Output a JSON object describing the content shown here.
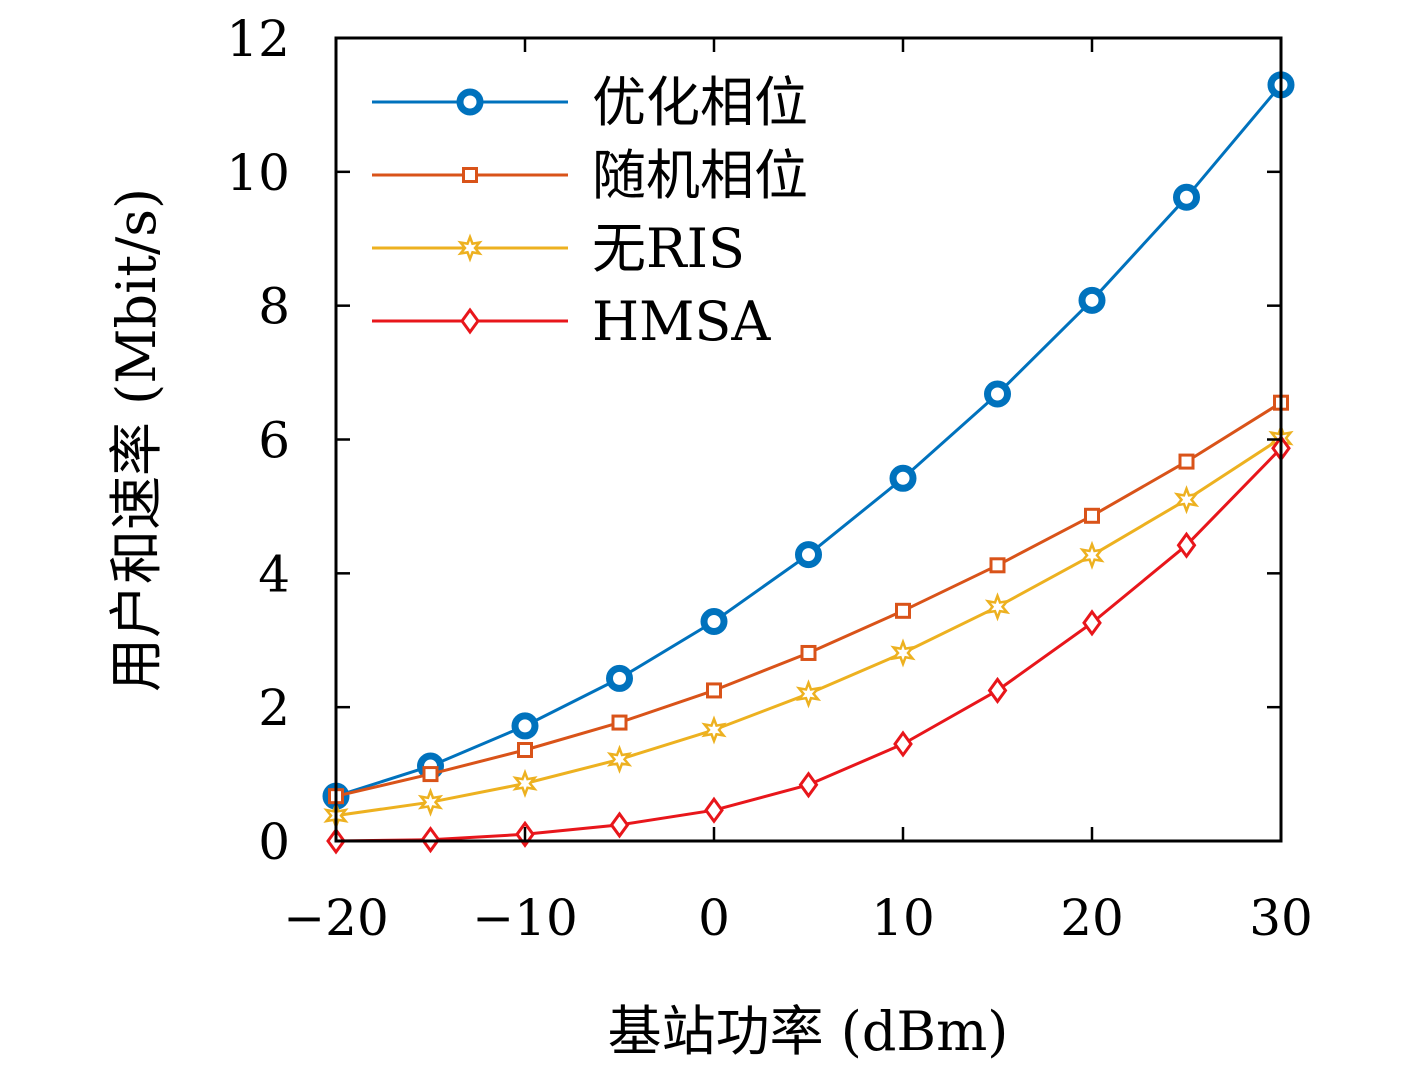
{
  "chart_data": {
    "type": "line",
    "xlabel": "基站功率 (dBm)",
    "ylabel": "用户和速率 (Mbit/s)",
    "xlim": [
      -20,
      30
    ],
    "ylim": [
      0,
      12
    ],
    "xticks": [
      -20,
      -10,
      0,
      10,
      20,
      30
    ],
    "xtick_labels": [
      "−20",
      "−10",
      "0",
      "10",
      "20",
      "30"
    ],
    "yticks": [
      0,
      2,
      4,
      6,
      8,
      10,
      12
    ],
    "ytick_labels": [
      "0",
      "2",
      "4",
      "6",
      "8",
      "10",
      "12"
    ],
    "grid": false,
    "legend_position": "top-left",
    "x": [
      -20,
      -15,
      -10,
      -5,
      0,
      5,
      10,
      15,
      20,
      25,
      30
    ],
    "series": [
      {
        "name": "优化相位",
        "color": "#0072BD",
        "marker": "circle",
        "values": [
          0.67,
          1.12,
          1.72,
          2.43,
          3.28,
          4.28,
          5.42,
          6.68,
          8.08,
          9.62,
          11.3
        ]
      },
      {
        "name": "随机相位",
        "color": "#D95319",
        "marker": "square",
        "values": [
          0.67,
          1.0,
          1.36,
          1.77,
          2.25,
          2.81,
          3.44,
          4.12,
          4.86,
          5.67,
          6.55
        ]
      },
      {
        "name": "无RIS",
        "color": "#EDB120",
        "marker": "star",
        "values": [
          0.38,
          0.58,
          0.86,
          1.22,
          1.66,
          2.2,
          2.81,
          3.5,
          4.27,
          5.1,
          6.02
        ]
      },
      {
        "name": "HMSA",
        "color": "#E8161B",
        "marker": "diamond",
        "values": [
          0.0,
          0.02,
          0.1,
          0.24,
          0.46,
          0.84,
          1.45,
          2.25,
          3.26,
          4.42,
          5.87
        ]
      }
    ]
  }
}
